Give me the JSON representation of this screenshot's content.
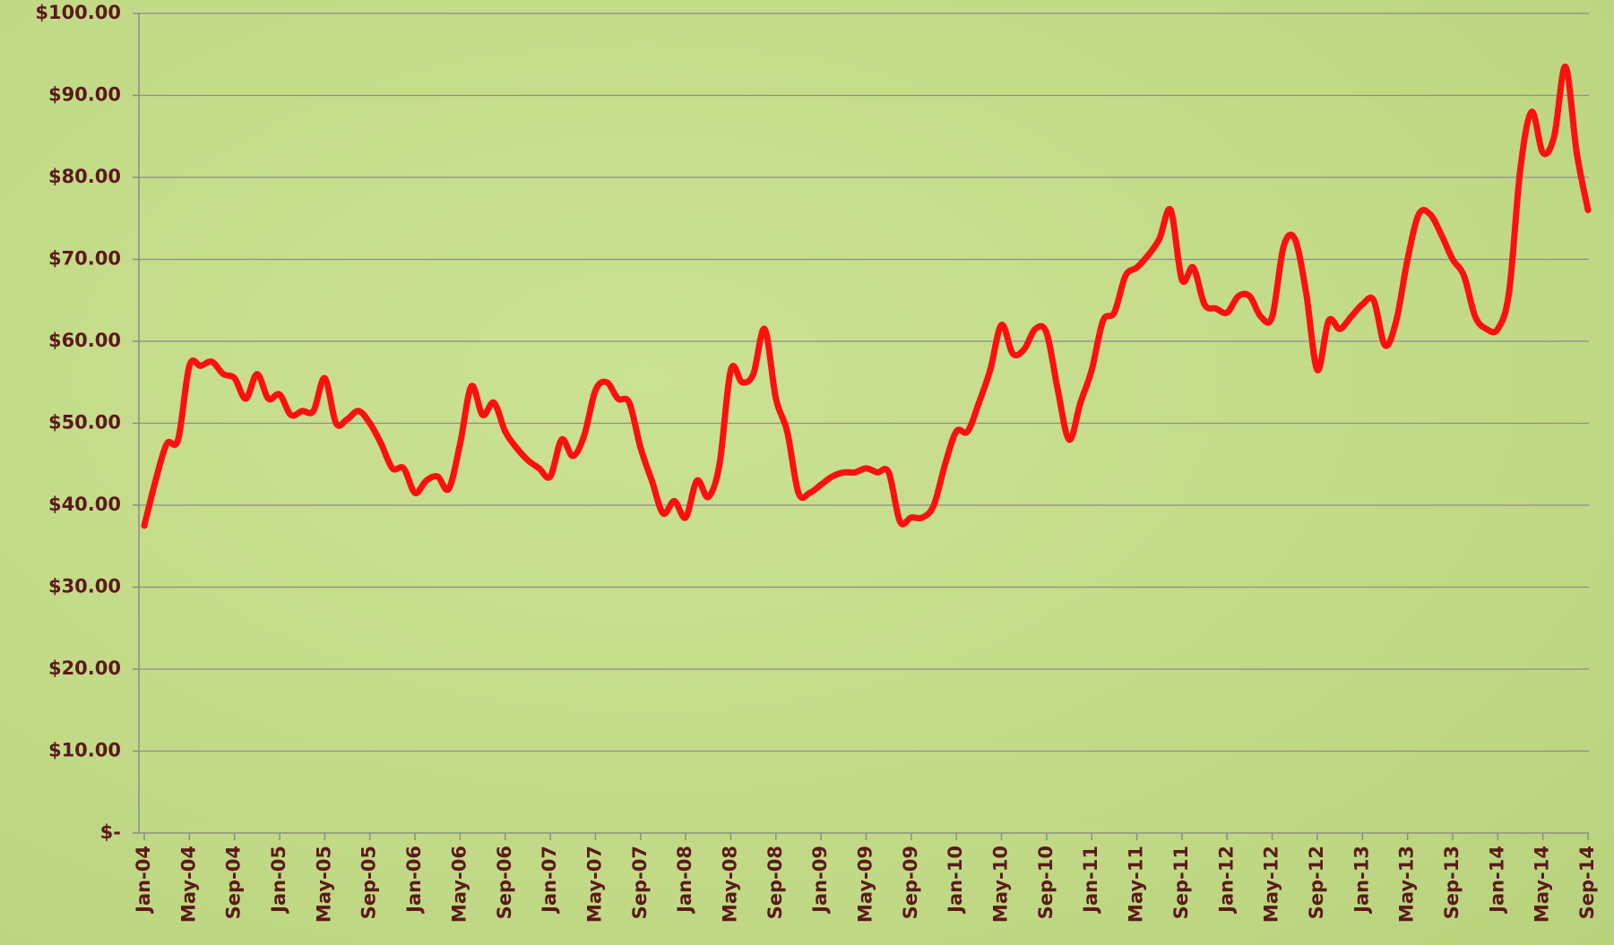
{
  "chart_data": {
    "type": "line",
    "categories": [
      "Jan-04",
      null,
      null,
      null,
      "May-04",
      null,
      null,
      null,
      "Sep-04",
      null,
      null,
      null,
      "Jan-05",
      null,
      null,
      null,
      "May-05",
      null,
      null,
      null,
      "Sep-05",
      null,
      null,
      null,
      "Jan-06",
      null,
      null,
      null,
      "May-06",
      null,
      null,
      null,
      "Sep-06",
      null,
      null,
      null,
      "Jan-07",
      null,
      null,
      null,
      "May-07",
      null,
      null,
      null,
      "Sep-07",
      null,
      null,
      null,
      "Jan-08",
      null,
      null,
      null,
      "May-08",
      null,
      null,
      null,
      "Sep-08",
      null,
      null,
      null,
      "Jan-09",
      null,
      null,
      null,
      "May-09",
      null,
      null,
      null,
      "Sep-09",
      null,
      null,
      null,
      "Jan-10",
      null,
      null,
      null,
      "May-10",
      null,
      null,
      null,
      "Sep-10",
      null,
      null,
      null,
      "Jan-11",
      null,
      null,
      null,
      "May-11",
      null,
      null,
      null,
      "Sep-11",
      null,
      null,
      null,
      "Jan-12",
      null,
      null,
      null,
      "May-12",
      null,
      null,
      null,
      "Sep-12",
      null,
      null,
      null,
      "Jan-13",
      null,
      null,
      null,
      "May-13",
      null,
      null,
      null,
      "Sep-13",
      null,
      null,
      null,
      "Jan-14",
      null,
      null,
      null,
      "May-14",
      null,
      null,
      null,
      "Sep-14"
    ],
    "values": [
      37.5,
      43,
      47.5,
      48,
      57,
      57,
      57.5,
      56,
      55.5,
      53,
      56,
      53,
      53.5,
      51,
      51.5,
      51.5,
      55.5,
      50,
      50.5,
      51.5,
      50,
      47.5,
      44.5,
      44.5,
      41.5,
      43,
      43.5,
      42,
      47.5,
      54.5,
      51,
      52.5,
      49,
      47,
      45.5,
      44.5,
      43.5,
      48,
      46,
      48.5,
      54,
      55,
      53,
      52.5,
      47,
      43,
      39,
      40.5,
      38.5,
      43,
      41,
      45,
      56.5,
      55,
      56,
      61.5,
      53,
      49,
      41.5,
      41.5,
      42.5,
      43.5,
      44,
      44,
      44.5,
      44,
      44,
      38,
      38.5,
      38.5,
      40,
      45,
      49,
      49,
      52.5,
      56.5,
      62,
      58.5,
      59,
      61.5,
      61,
      54,
      48,
      52.5,
      56.5,
      62.5,
      63.5,
      68,
      69,
      70.5,
      72.5,
      76,
      67.5,
      69,
      64.5,
      64,
      63.5,
      65.5,
      65.5,
      63,
      63,
      71.5,
      72.5,
      66,
      56.5,
      62.5,
      61.5,
      63,
      64.5,
      65,
      59.5,
      62.5,
      70,
      75.5,
      75.5,
      73,
      70,
      68,
      63,
      61.5,
      61.5,
      66,
      81,
      88,
      83,
      85,
      93.5,
      83,
      76
    ],
    "color": "#ff1010",
    "ylim": [
      0,
      100
    ],
    "yticks": [
      {
        "value": 0,
        "label": "$-"
      },
      {
        "value": 10,
        "label": "$10.00"
      },
      {
        "value": 20,
        "label": "$20.00"
      },
      {
        "value": 30,
        "label": "$30.00"
      },
      {
        "value": 40,
        "label": "$40.00"
      },
      {
        "value": 50,
        "label": "$50.00"
      },
      {
        "value": 60,
        "label": "$60.00"
      },
      {
        "value": 70,
        "label": "$70.00"
      },
      {
        "value": 80,
        "label": "$80.00"
      },
      {
        "value": 90,
        "label": "$90.00"
      },
      {
        "value": 100,
        "label": "$100.00"
      }
    ],
    "grid": true
  }
}
